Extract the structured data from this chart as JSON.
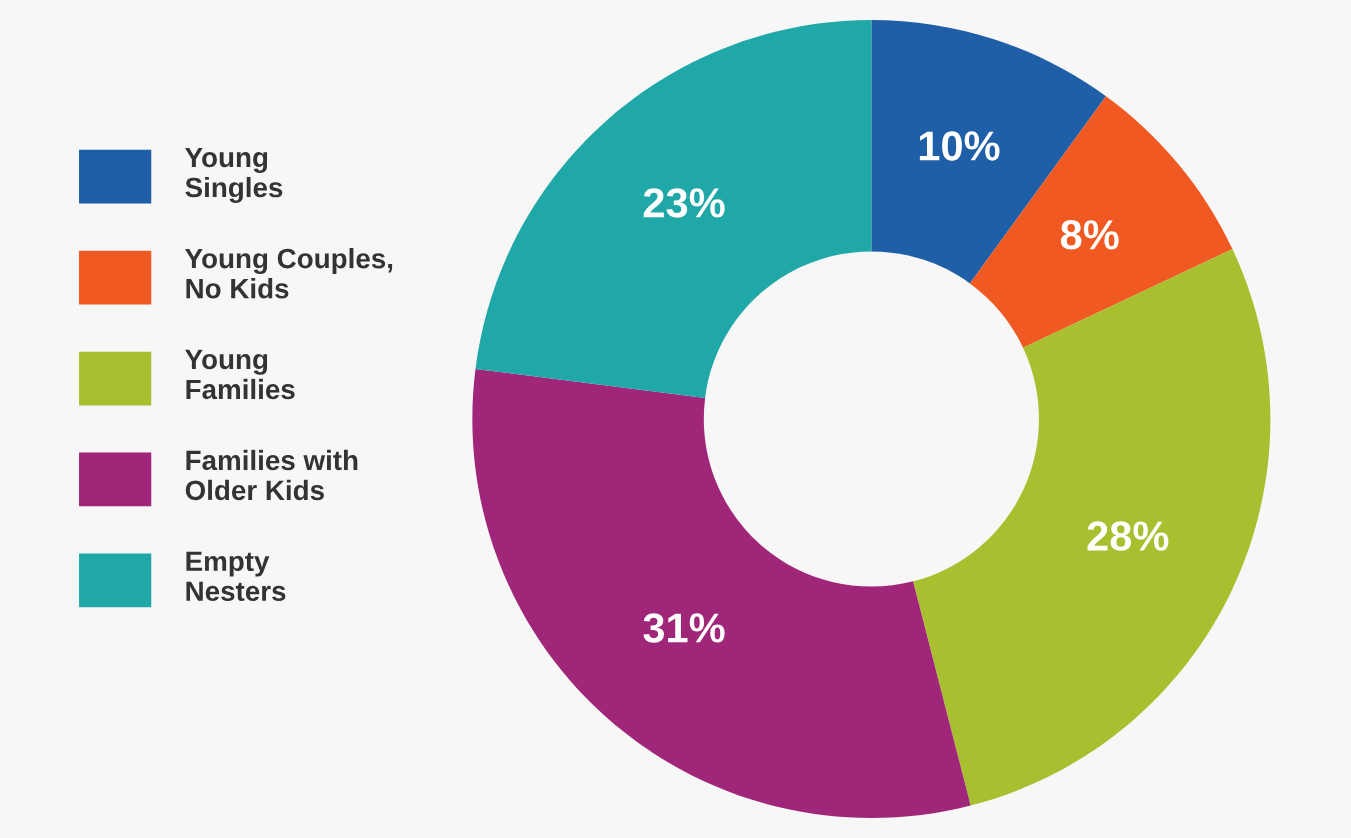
{
  "chart_data": {
    "type": "donut",
    "categories": [
      "Young Singles",
      "Young Couples, No Kids",
      "Young Families",
      "Families with Older Kids",
      "Empty Nesters"
    ],
    "values": [
      10,
      8,
      28,
      31,
      23
    ],
    "colors": [
      "#1f5fa8",
      "#f05a22",
      "#a8c030",
      "#a0267a",
      "#20a8a8"
    ],
    "value_labels": [
      "10%",
      "8%",
      "28%",
      "31%",
      "23%"
    ],
    "legend": "left"
  }
}
